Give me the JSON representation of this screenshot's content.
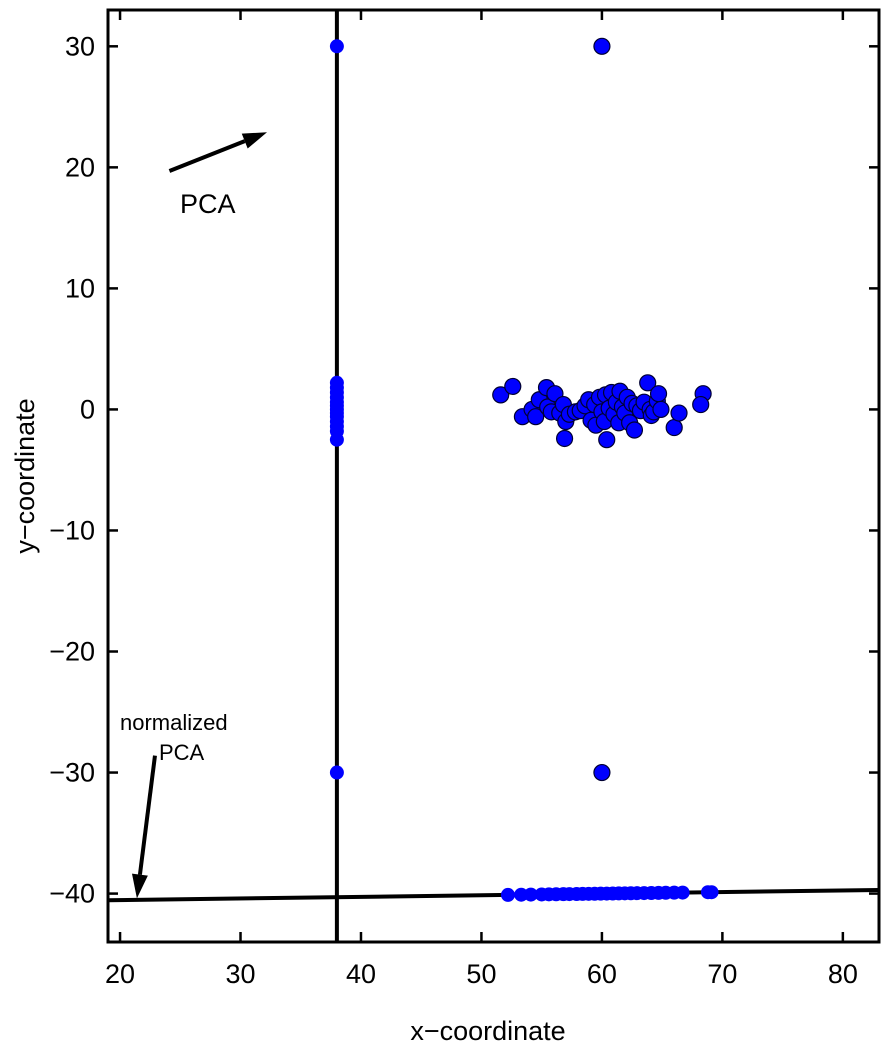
{
  "chart_data": {
    "type": "scatter",
    "title": "",
    "xlabel": "x−coordinate",
    "ylabel": "y−coordinate",
    "xlim": [
      19,
      83
    ],
    "ylim": [
      -44,
      33
    ],
    "xticks": [
      20,
      30,
      40,
      50,
      60,
      70,
      80
    ],
    "yticks": [
      30,
      20,
      10,
      0,
      -10,
      -20,
      -30,
      -40
    ],
    "grid": false,
    "legend": "none",
    "colors": {
      "point": "#0000ff",
      "point_edge": "#000033",
      "line": "#000000"
    },
    "cluster_points": [
      [
        51.6,
        1.2
      ],
      [
        52.6,
        1.9
      ],
      [
        53.4,
        -0.6
      ],
      [
        54.2,
        0.0
      ],
      [
        54.5,
        -0.6
      ],
      [
        54.8,
        0.8
      ],
      [
        55.4,
        1.8
      ],
      [
        55.5,
        0.2
      ],
      [
        55.8,
        -0.2
      ],
      [
        56.1,
        1.3
      ],
      [
        56.5,
        -0.3
      ],
      [
        56.9,
        -2.4
      ],
      [
        56.8,
        0.4
      ],
      [
        57.0,
        -1.0
      ],
      [
        57.3,
        -0.4
      ],
      [
        57.8,
        -0.2
      ],
      [
        58.2,
        -0.1
      ],
      [
        58.6,
        0.3
      ],
      [
        58.9,
        0.8
      ],
      [
        59.1,
        -0.9
      ],
      [
        59.4,
        0.4
      ],
      [
        59.5,
        -1.3
      ],
      [
        59.8,
        1.0
      ],
      [
        60.0,
        -0.2
      ],
      [
        60.2,
        -1.0
      ],
      [
        60.3,
        1.2
      ],
      [
        60.4,
        -2.5
      ],
      [
        60.6,
        0.1
      ],
      [
        60.8,
        1.4
      ],
      [
        61.0,
        -0.4
      ],
      [
        61.2,
        0.6
      ],
      [
        61.4,
        -1.1
      ],
      [
        61.5,
        1.5
      ],
      [
        61.7,
        0.2
      ],
      [
        61.9,
        -0.3
      ],
      [
        62.1,
        1.0
      ],
      [
        62.3,
        -1.1
      ],
      [
        62.5,
        0.5
      ],
      [
        62.7,
        -1.7
      ],
      [
        62.9,
        0.3
      ],
      [
        63.2,
        -0.1
      ],
      [
        63.5,
        0.6
      ],
      [
        63.8,
        2.2
      ],
      [
        64.0,
        0.0
      ],
      [
        64.1,
        -0.5
      ],
      [
        64.3,
        -0.2
      ],
      [
        64.6,
        0.7
      ],
      [
        64.7,
        1.3
      ],
      [
        64.9,
        0.0
      ],
      [
        66.0,
        -1.5
      ],
      [
        66.4,
        -0.3
      ],
      [
        68.4,
        1.3
      ],
      [
        68.2,
        0.4
      ]
    ],
    "outlier_points": [
      [
        60,
        30
      ],
      [
        60,
        -30
      ]
    ],
    "pca_line": {
      "label": "PCA",
      "x": 38.0,
      "y_range": [
        -44,
        33
      ]
    },
    "pca_points": [
      [
        38,
        30
      ],
      [
        38,
        2.2
      ],
      [
        38,
        1.8
      ],
      [
        38,
        1.4
      ],
      [
        38,
        1.0
      ],
      [
        38,
        0.6
      ],
      [
        38,
        0.3
      ],
      [
        38,
        0.0
      ],
      [
        38,
        -0.3
      ],
      [
        38,
        -0.6
      ],
      [
        38,
        -1.0
      ],
      [
        38,
        -1.4
      ],
      [
        38,
        -1.8
      ],
      [
        38,
        -2.5
      ],
      [
        38,
        -30
      ]
    ],
    "normalized_pca_line": {
      "label_line1": "normalized",
      "label_line2": "PCA",
      "start": [
        19,
        -40.55
      ],
      "end": [
        83,
        -39.7
      ]
    },
    "normalized_pca_points_x": [
      52.2,
      53.3,
      54.1,
      55.0,
      55.6,
      56.2,
      56.8,
      57.3,
      57.9,
      58.4,
      58.9,
      59.4,
      59.9,
      60.4,
      60.9,
      61.4,
      61.9,
      62.4,
      62.9,
      63.5,
      64.1,
      64.7,
      65.3,
      66.0,
      66.7,
      68.8,
      69.1
    ],
    "annotations": [
      {
        "text": "PCA",
        "tail": [
          24.1,
          19.7
        ],
        "head": [
          32.2,
          22.9
        ]
      },
      {
        "text": "normalized PCA",
        "tail": [
          22.9,
          -28.6
        ],
        "head": [
          21.4,
          -40.4
        ]
      }
    ]
  }
}
